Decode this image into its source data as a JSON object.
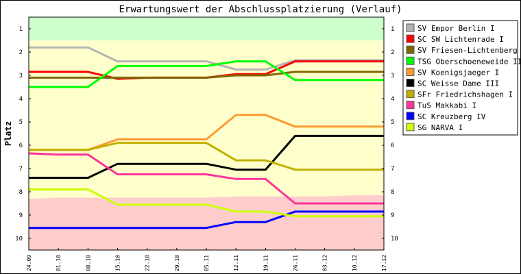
{
  "chart_data": {
    "type": "line",
    "title": "Erwartungswert der Abschlussplatzierung (Verlauf)",
    "ylabel": "Platz",
    "xlabel": "",
    "x": [
      "24.09",
      "01.10",
      "08.10",
      "15.10",
      "22.10",
      "29.10",
      "05.11",
      "12.11",
      "19.11",
      "26.11",
      "03.12",
      "10.12",
      "17.12"
    ],
    "y_ticks": [
      1,
      2,
      3,
      4,
      5,
      6,
      7,
      8,
      9,
      10
    ],
    "ylim": [
      0.5,
      10.5
    ],
    "y_inverted": true,
    "grid": false,
    "legend_position": "right",
    "zones": [
      {
        "name": "promotion",
        "color": "#ccffcc",
        "from": [
          0.5,
          0.5,
          0.5,
          0.5,
          0.5,
          0.5,
          0.5,
          0.5,
          0.5,
          0.5,
          0.5,
          0.5,
          0.5
        ],
        "to": [
          1.5,
          1.5,
          1.5,
          1.5,
          1.5,
          1.5,
          1.5,
          1.5,
          1.5,
          1.5,
          1.5,
          1.5,
          1.5
        ]
      },
      {
        "name": "midfield",
        "color": "#ffffcc",
        "from": [
          1.5,
          1.5,
          1.5,
          1.5,
          1.5,
          1.5,
          1.5,
          1.5,
          1.5,
          1.5,
          1.5,
          1.5,
          1.5
        ],
        "to": [
          8.3,
          8.25,
          8.25,
          8.25,
          8.25,
          8.25,
          8.25,
          8.2,
          8.2,
          8.2,
          8.2,
          8.15,
          8.15
        ]
      },
      {
        "name": "relegation",
        "color": "#ffcccc",
        "from": [
          8.3,
          8.25,
          8.25,
          8.25,
          8.25,
          8.25,
          8.25,
          8.2,
          8.2,
          8.2,
          8.2,
          8.15,
          8.15
        ],
        "to": [
          10.5,
          10.5,
          10.5,
          10.5,
          10.5,
          10.5,
          10.5,
          10.5,
          10.5,
          10.5,
          10.5,
          10.5,
          10.5
        ]
      }
    ],
    "series": [
      {
        "name": "SV Empor Berlin I",
        "color": "#b4b4b4",
        "values": [
          1.8,
          1.8,
          1.8,
          2.4,
          2.4,
          2.4,
          2.4,
          2.75,
          2.75,
          2.35,
          2.35,
          2.35,
          2.35
        ]
      },
      {
        "name": "SC SW Lichtenrade I",
        "color": "#ff0000",
        "values": [
          2.85,
          2.85,
          2.85,
          3.15,
          3.1,
          3.1,
          3.1,
          2.95,
          2.95,
          2.4,
          2.4,
          2.4,
          2.4
        ]
      },
      {
        "name": "SV Friesen-Lichtenberg I",
        "color": "#806600",
        "values": [
          3.1,
          3.1,
          3.1,
          3.1,
          3.1,
          3.1,
          3.1,
          3.0,
          3.0,
          2.85,
          2.85,
          2.85,
          2.85
        ]
      },
      {
        "name": "TSG Oberschoeneweide II",
        "color": "#00ff00",
        "values": [
          3.5,
          3.5,
          3.5,
          2.6,
          2.6,
          2.6,
          2.6,
          2.4,
          2.4,
          3.2,
          3.2,
          3.2,
          3.2
        ]
      },
      {
        "name": "SV Koenigsjaeger I",
        "color": "#ff9933",
        "values": [
          6.2,
          6.2,
          6.2,
          5.75,
          5.75,
          5.75,
          5.75,
          4.7,
          4.7,
          5.2,
          5.2,
          5.2,
          5.2
        ]
      },
      {
        "name": "SC Weisse Dame III",
        "color": "#000000",
        "values": [
          7.4,
          7.4,
          7.4,
          6.8,
          6.8,
          6.8,
          6.8,
          7.05,
          7.05,
          5.6,
          5.6,
          5.6,
          5.6
        ]
      },
      {
        "name": "SFr Friedrichshagen I",
        "color": "#c0b000",
        "values": [
          6.2,
          6.2,
          6.2,
          5.9,
          5.9,
          5.9,
          5.9,
          6.65,
          6.65,
          7.05,
          7.05,
          7.05,
          7.05
        ]
      },
      {
        "name": "TuS Makkabi I",
        "color": "#ff3399",
        "values": [
          6.35,
          6.4,
          6.4,
          7.25,
          7.25,
          7.25,
          7.25,
          7.45,
          7.45,
          8.5,
          8.5,
          8.5,
          8.5
        ]
      },
      {
        "name": "SC Kreuzberg IV",
        "color": "#0000ff",
        "values": [
          9.55,
          9.55,
          9.55,
          9.55,
          9.55,
          9.55,
          9.55,
          9.3,
          9.3,
          8.85,
          8.85,
          8.85,
          8.85
        ]
      },
      {
        "name": "SG NARVA I",
        "color": "#ccff00",
        "values": [
          7.9,
          7.9,
          7.9,
          8.55,
          8.55,
          8.55,
          8.55,
          8.85,
          8.85,
          9.05,
          9.05,
          9.05,
          9.05
        ]
      }
    ]
  }
}
